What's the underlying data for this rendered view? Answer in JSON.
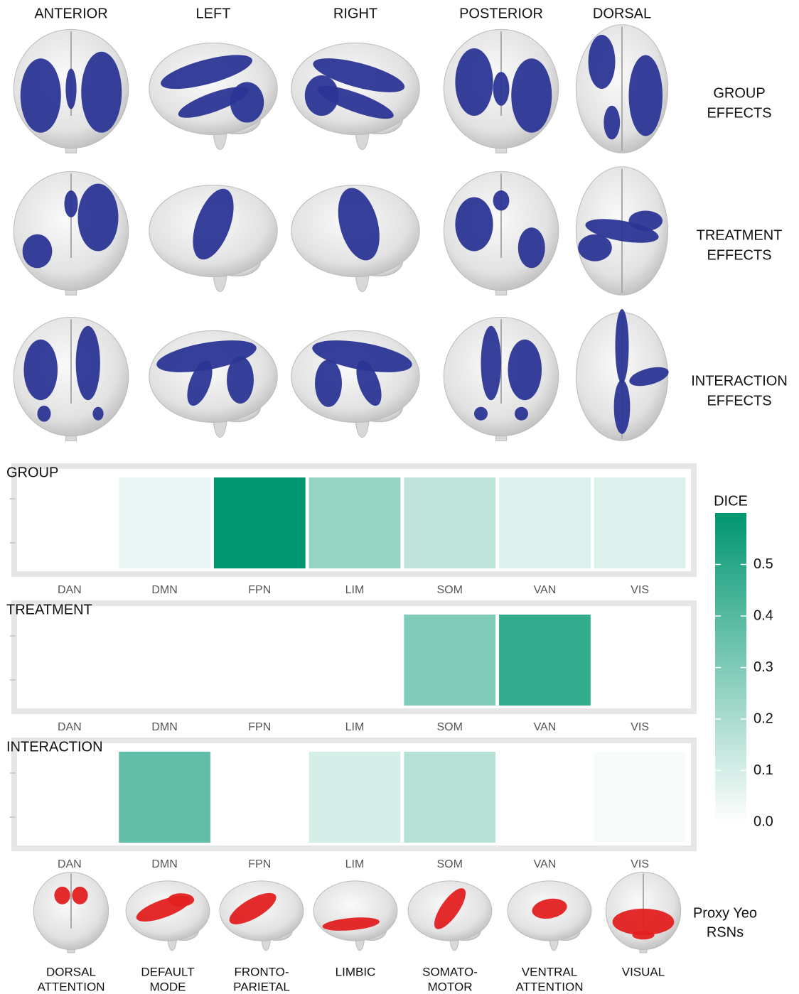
{
  "brain_views": {
    "columns": [
      "ANTERIOR",
      "LEFT",
      "RIGHT",
      "POSTERIOR",
      "DORSAL"
    ],
    "rows": [
      [
        "GROUP",
        "EFFECTS"
      ],
      [
        "TREATMENT",
        "EFFECTS"
      ],
      [
        "INTERACTION",
        "EFFECTS"
      ]
    ]
  },
  "chart_data": [
    {
      "type": "heatmap",
      "title": "GROUP",
      "categories": [
        "DAN",
        "DMN",
        "FPN",
        "LIM",
        "SOM",
        "VAN",
        "VIS"
      ],
      "values": [
        null,
        0.05,
        0.6,
        0.25,
        0.15,
        0.08,
        0.08
      ]
    },
    {
      "type": "heatmap",
      "title": "TREATMENT",
      "categories": [
        "DAN",
        "DMN",
        "FPN",
        "LIM",
        "SOM",
        "VAN",
        "VIS"
      ],
      "values": [
        null,
        null,
        null,
        null,
        0.3,
        0.48,
        null
      ]
    },
    {
      "type": "heatmap",
      "title": "INTERACTION",
      "categories": [
        "DAN",
        "DMN",
        "FPN",
        "LIM",
        "SOM",
        "VAN",
        "VIS"
      ],
      "values": [
        null,
        0.37,
        null,
        0.1,
        0.17,
        null,
        0.02
      ]
    }
  ],
  "colorbar": {
    "title": "DICE",
    "lim": [
      0,
      0.6
    ],
    "ticks": [
      {
        "value": 0,
        "label": "0.0"
      },
      0.1,
      0.2,
      0.3,
      0.4,
      0.5
    ],
    "color_low": "#ffffff",
    "color_high": "#009670"
  },
  "rsn_panel": {
    "label": [
      "Proxy Yeo",
      "RSNs"
    ],
    "networks": [
      [
        "DORSAL",
        "ATTENTION"
      ],
      [
        "DEFAULT",
        "MODE"
      ],
      [
        "FRONTO-",
        "PARIETAL"
      ],
      [
        "LIMBIC"
      ],
      [
        "SOMATO-",
        "MOTOR"
      ],
      [
        "VENTRAL",
        "ATTENTION"
      ],
      [
        "VISUAL"
      ]
    ]
  }
}
